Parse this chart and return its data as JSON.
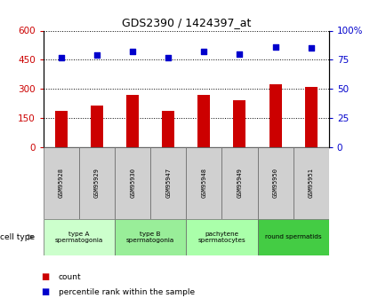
{
  "title": "GDS2390 / 1424397_at",
  "categories": [
    "GSM95928",
    "GSM95929",
    "GSM95930",
    "GSM95947",
    "GSM95948",
    "GSM95949",
    "GSM95950",
    "GSM95951"
  ],
  "counts": [
    185,
    215,
    270,
    185,
    270,
    240,
    325,
    310
  ],
  "percentiles": [
    77,
    79,
    82,
    77,
    82,
    80,
    86,
    85
  ],
  "ylim_left": [
    0,
    600
  ],
  "ylim_right": [
    0,
    100
  ],
  "yticks_left": [
    0,
    150,
    300,
    450,
    600
  ],
  "yticks_right": [
    0,
    25,
    50,
    75,
    100
  ],
  "bar_color": "#cc0000",
  "dot_color": "#0000cc",
  "cell_groups": [
    {
      "label": "type A\nspermatogonia",
      "start": 0,
      "end": 2,
      "color": "#ccffcc"
    },
    {
      "label": "type B\nspermatogonia",
      "start": 2,
      "end": 4,
      "color": "#99ee99"
    },
    {
      "label": "pachytene\nspermatocytes",
      "start": 4,
      "end": 6,
      "color": "#aaffaa"
    },
    {
      "label": "round spermatids",
      "start": 6,
      "end": 8,
      "color": "#44cc44"
    }
  ],
  "legend_items": [
    {
      "color": "#cc0000",
      "label": "count"
    },
    {
      "color": "#0000cc",
      "label": "percentile rank within the sample"
    }
  ],
  "cell_type_label": "cell type",
  "background_color": "#ffffff",
  "plot_bg_color": "#ffffff",
  "tick_label_color_left": "#cc0000",
  "tick_label_color_right": "#0000cc",
  "sample_box_color": "#d0d0d0",
  "bar_width": 0.35
}
